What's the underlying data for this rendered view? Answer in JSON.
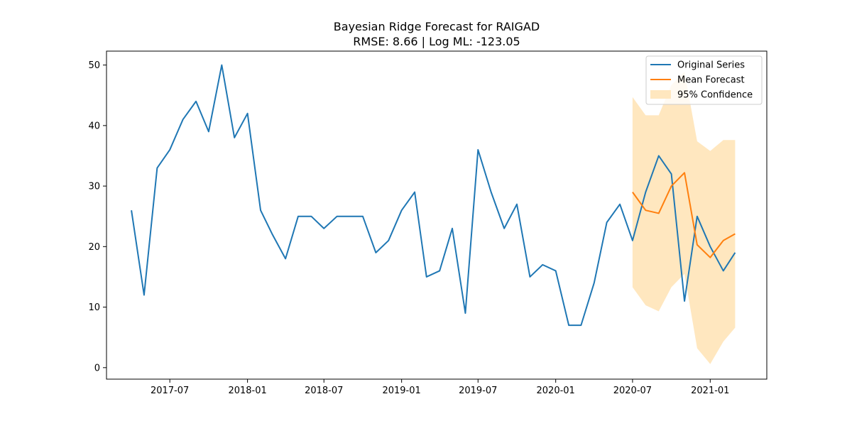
{
  "chart_data": {
    "type": "line",
    "title": "Bayesian Ridge Forecast for RAIGAD",
    "subtitle": "RMSE: 8.66 | Log ML: -123.05",
    "xlabel": "",
    "ylabel": "",
    "x_axis": "date",
    "xlim": [
      "2017-02-01",
      "2021-05-15"
    ],
    "ylim": [
      -1.9,
      52.3
    ],
    "x_ticks": [
      "2017-07",
      "2018-01",
      "2018-07",
      "2019-01",
      "2019-07",
      "2020-01",
      "2020-07",
      "2021-01"
    ],
    "y_ticks": [
      0,
      10,
      20,
      30,
      40,
      50
    ],
    "grid": false,
    "legend_position": "top-right",
    "series": [
      {
        "name": "Original Series",
        "color": "#1f77b4",
        "kind": "line",
        "x": [
          "2017-04-01",
          "2017-05-01",
          "2017-06-01",
          "2017-07-01",
          "2017-08-01",
          "2017-09-01",
          "2017-10-01",
          "2017-11-01",
          "2017-12-01",
          "2018-01-01",
          "2018-02-01",
          "2018-03-01",
          "2018-04-01",
          "2018-05-01",
          "2018-06-01",
          "2018-07-01",
          "2018-08-01",
          "2018-09-01",
          "2018-10-01",
          "2018-11-01",
          "2018-12-01",
          "2019-01-01",
          "2019-02-01",
          "2019-03-01",
          "2019-04-01",
          "2019-05-01",
          "2019-06-01",
          "2019-07-01",
          "2019-08-01",
          "2019-09-01",
          "2019-10-01",
          "2019-11-01",
          "2019-12-01",
          "2020-01-01",
          "2020-02-01",
          "2020-03-01",
          "2020-04-01",
          "2020-05-01",
          "2020-06-01",
          "2020-07-01",
          "2020-08-01",
          "2020-09-01",
          "2020-10-01",
          "2020-11-01",
          "2020-12-01",
          "2021-01-01",
          "2021-02-01",
          "2021-03-01"
        ],
        "values": [
          26,
          12,
          33,
          36,
          41,
          44,
          39,
          50,
          38,
          42,
          26,
          22,
          18,
          25,
          25,
          23,
          25,
          25,
          25,
          19,
          21,
          26,
          29,
          15,
          16,
          23,
          9,
          36,
          29,
          23,
          27,
          15,
          17,
          16,
          7,
          7,
          14,
          24,
          27,
          21,
          29,
          35,
          32,
          11,
          25,
          20,
          16,
          19
        ]
      },
      {
        "name": "Mean Forecast",
        "color": "#ff7f0e",
        "kind": "line",
        "x": [
          "2020-07-01",
          "2020-08-01",
          "2020-09-01",
          "2020-10-01",
          "2020-11-01",
          "2020-12-01",
          "2021-01-01",
          "2021-02-01",
          "2021-03-01"
        ],
        "values": [
          29,
          26,
          25.5,
          30,
          32.2,
          20.3,
          18.2,
          21,
          22.1
        ]
      },
      {
        "name": "95% Confidence",
        "color": "#ffe7bf",
        "kind": "band",
        "x": [
          "2020-07-01",
          "2020-08-01",
          "2020-09-01",
          "2020-10-01",
          "2020-11-01",
          "2020-12-01",
          "2021-01-01",
          "2021-02-01",
          "2021-03-01"
        ],
        "lower": [
          13.3,
          10.3,
          9.3,
          13.3,
          15.5,
          3.2,
          0.6,
          4.3,
          6.6
        ],
        "upper": [
          44.7,
          41.7,
          41.7,
          46.7,
          48.9,
          37.4,
          35.8,
          37.6,
          37.6
        ]
      }
    ]
  }
}
